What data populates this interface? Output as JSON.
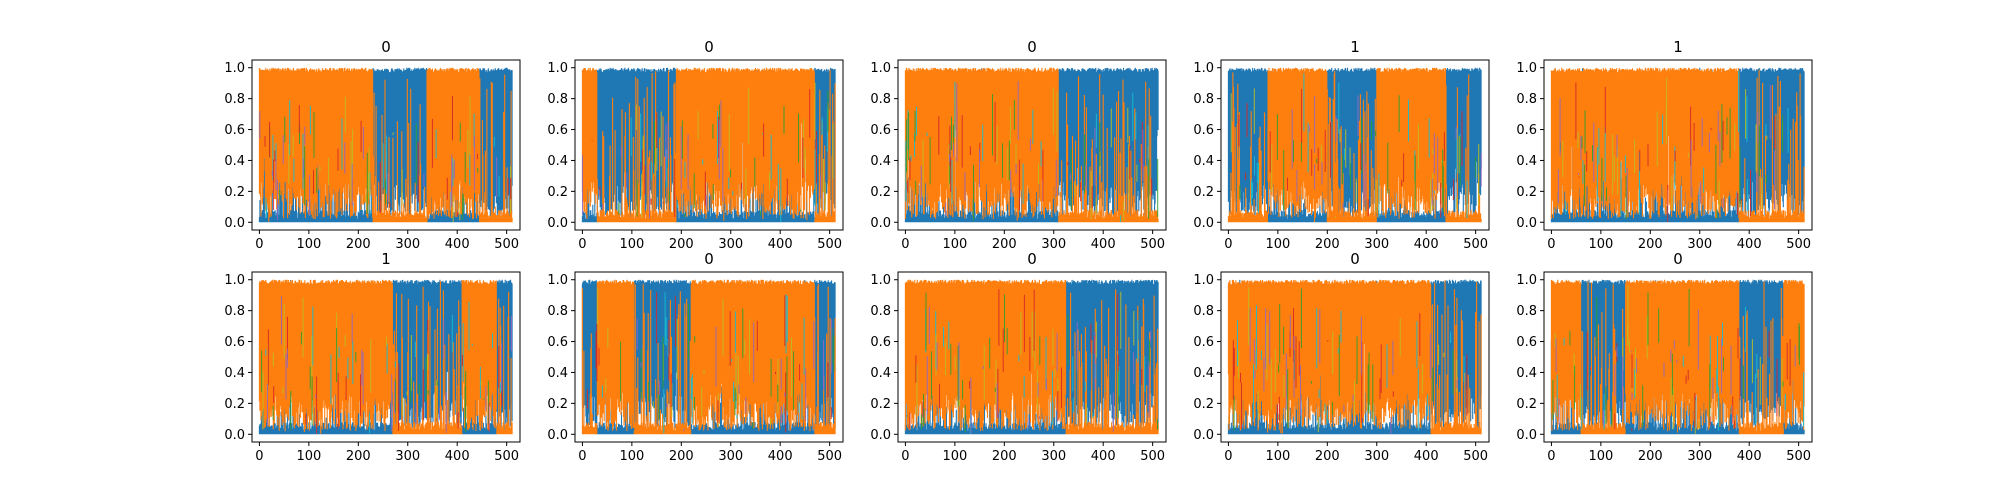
{
  "figure": {
    "background": "#ffffff",
    "grid": "2x5"
  },
  "chart_data": [
    {
      "type": "line",
      "title": "0",
      "xlim": [
        -15,
        527
      ],
      "ylim": [
        -0.05,
        1.05
      ],
      "xticks": [
        0,
        100,
        200,
        300,
        400,
        500
      ],
      "yticks": [
        0.0,
        0.2,
        0.4,
        0.6,
        0.8,
        1.0
      ],
      "series": [
        {
          "color": "#ff7f0e",
          "segments": [
            [
              0,
              230,
              "high"
            ],
            [
              230,
              340,
              "low"
            ],
            [
              340,
              445,
              "high"
            ],
            [
              445,
              512,
              "low"
            ]
          ]
        },
        {
          "color": "#1f77b4",
          "segments": [
            [
              0,
              230,
              "low"
            ],
            [
              230,
              340,
              "high"
            ],
            [
              340,
              445,
              "low"
            ],
            [
              445,
              512,
              "high"
            ]
          ]
        }
      ]
    },
    {
      "type": "line",
      "title": "0",
      "xlim": [
        -15,
        527
      ],
      "ylim": [
        -0.05,
        1.05
      ],
      "xticks": [
        0,
        100,
        200,
        300,
        400,
        500
      ],
      "yticks": [
        0.0,
        0.2,
        0.4,
        0.6,
        0.8,
        1.0
      ],
      "series": [
        {
          "color": "#ff7f0e",
          "segments": [
            [
              0,
              30,
              "high"
            ],
            [
              30,
              190,
              "low"
            ],
            [
              190,
              470,
              "high"
            ],
            [
              470,
              512,
              "low"
            ]
          ]
        },
        {
          "color": "#1f77b4",
          "segments": [
            [
              0,
              30,
              "low"
            ],
            [
              30,
              190,
              "high"
            ],
            [
              190,
              470,
              "low"
            ],
            [
              470,
              512,
              "high"
            ]
          ]
        }
      ]
    },
    {
      "type": "line",
      "title": "0",
      "xlim": [
        -15,
        527
      ],
      "ylim": [
        -0.05,
        1.05
      ],
      "xticks": [
        0,
        100,
        200,
        300,
        400,
        500
      ],
      "yticks": [
        0.0,
        0.2,
        0.4,
        0.6,
        0.8,
        1.0
      ],
      "series": [
        {
          "color": "#ff7f0e",
          "segments": [
            [
              0,
              310,
              "high"
            ],
            [
              310,
              512,
              "low"
            ]
          ]
        },
        {
          "color": "#1f77b4",
          "segments": [
            [
              0,
              310,
              "low"
            ],
            [
              310,
              512,
              "high"
            ]
          ]
        }
      ]
    },
    {
      "type": "line",
      "title": "1",
      "xlim": [
        -15,
        527
      ],
      "ylim": [
        -0.05,
        1.05
      ],
      "xticks": [
        0,
        100,
        200,
        300,
        400,
        500
      ],
      "yticks": [
        0.0,
        0.2,
        0.4,
        0.6,
        0.8,
        1.0
      ],
      "series": [
        {
          "color": "#ff7f0e",
          "segments": [
            [
              0,
              80,
              "low"
            ],
            [
              80,
              200,
              "high"
            ],
            [
              200,
              300,
              "low"
            ],
            [
              300,
              440,
              "high"
            ],
            [
              440,
              512,
              "low"
            ]
          ]
        },
        {
          "color": "#1f77b4",
          "segments": [
            [
              0,
              80,
              "high"
            ],
            [
              80,
              200,
              "low"
            ],
            [
              200,
              300,
              "high"
            ],
            [
              300,
              440,
              "low"
            ],
            [
              440,
              512,
              "high"
            ]
          ]
        }
      ]
    },
    {
      "type": "line",
      "title": "1",
      "xlim": [
        -15,
        527
      ],
      "ylim": [
        -0.05,
        1.05
      ],
      "xticks": [
        0,
        100,
        200,
        300,
        400,
        500
      ],
      "yticks": [
        0.0,
        0.2,
        0.4,
        0.6,
        0.8,
        1.0
      ],
      "series": [
        {
          "color": "#ff7f0e",
          "segments": [
            [
              0,
              380,
              "high"
            ],
            [
              380,
              512,
              "low"
            ]
          ]
        },
        {
          "color": "#1f77b4",
          "segments": [
            [
              0,
              380,
              "low"
            ],
            [
              380,
              512,
              "high"
            ]
          ]
        }
      ]
    },
    {
      "type": "line",
      "title": "1",
      "xlim": [
        -15,
        527
      ],
      "ylim": [
        -0.05,
        1.05
      ],
      "xticks": [
        0,
        100,
        200,
        300,
        400,
        500
      ],
      "yticks": [
        0.0,
        0.2,
        0.4,
        0.6,
        0.8,
        1.0
      ],
      "series": [
        {
          "color": "#ff7f0e",
          "segments": [
            [
              0,
              270,
              "high"
            ],
            [
              270,
              410,
              "low"
            ],
            [
              410,
              480,
              "high"
            ],
            [
              480,
              512,
              "low"
            ]
          ]
        },
        {
          "color": "#1f77b4",
          "segments": [
            [
              0,
              270,
              "low"
            ],
            [
              270,
              410,
              "high"
            ],
            [
              410,
              480,
              "low"
            ],
            [
              480,
              512,
              "high"
            ]
          ]
        }
      ]
    },
    {
      "type": "line",
      "title": "0",
      "xlim": [
        -15,
        527
      ],
      "ylim": [
        -0.05,
        1.05
      ],
      "xticks": [
        0,
        100,
        200,
        300,
        400,
        500
      ],
      "yticks": [
        0.0,
        0.2,
        0.4,
        0.6,
        0.8,
        1.0
      ],
      "series": [
        {
          "color": "#ff7f0e",
          "segments": [
            [
              0,
              30,
              "low"
            ],
            [
              30,
              105,
              "high"
            ],
            [
              105,
              220,
              "low"
            ],
            [
              220,
              470,
              "high"
            ],
            [
              470,
              512,
              "low"
            ]
          ]
        },
        {
          "color": "#1f77b4",
          "segments": [
            [
              0,
              30,
              "high"
            ],
            [
              30,
              105,
              "low"
            ],
            [
              105,
              220,
              "high"
            ],
            [
              220,
              470,
              "low"
            ],
            [
              470,
              512,
              "high"
            ]
          ]
        }
      ]
    },
    {
      "type": "line",
      "title": "0",
      "xlim": [
        -15,
        527
      ],
      "ylim": [
        -0.05,
        1.05
      ],
      "xticks": [
        0,
        100,
        200,
        300,
        400,
        500
      ],
      "yticks": [
        0.0,
        0.2,
        0.4,
        0.6,
        0.8,
        1.0
      ],
      "series": [
        {
          "color": "#ff7f0e",
          "segments": [
            [
              0,
              325,
              "high"
            ],
            [
              325,
              512,
              "low"
            ]
          ]
        },
        {
          "color": "#1f77b4",
          "segments": [
            [
              0,
              325,
              "low"
            ],
            [
              325,
              512,
              "high"
            ]
          ]
        }
      ]
    },
    {
      "type": "line",
      "title": "0",
      "xlim": [
        -15,
        527
      ],
      "ylim": [
        -0.05,
        1.05
      ],
      "xticks": [
        0,
        100,
        200,
        300,
        400,
        500
      ],
      "yticks": [
        0.0,
        0.2,
        0.4,
        0.6,
        0.8,
        1.0
      ],
      "series": [
        {
          "color": "#ff7f0e",
          "segments": [
            [
              0,
              240,
              "high"
            ],
            [
              240,
              410,
              "high"
            ],
            [
              410,
              512,
              "low"
            ]
          ]
        },
        {
          "color": "#1f77b4",
          "segments": [
            [
              0,
              240,
              "low"
            ],
            [
              240,
              410,
              "low"
            ],
            [
              410,
              512,
              "high"
            ]
          ]
        }
      ]
    },
    {
      "type": "line",
      "title": "0",
      "xlim": [
        -15,
        527
      ],
      "ylim": [
        -0.05,
        1.05
      ],
      "xticks": [
        0,
        100,
        200,
        300,
        400,
        500
      ],
      "yticks": [
        0.0,
        0.2,
        0.4,
        0.6,
        0.8,
        1.0
      ],
      "series": [
        {
          "color": "#ff7f0e",
          "segments": [
            [
              0,
              60,
              "high"
            ],
            [
              60,
              150,
              "low"
            ],
            [
              150,
              380,
              "high"
            ],
            [
              380,
              470,
              "low"
            ],
            [
              470,
              512,
              "high"
            ]
          ]
        },
        {
          "color": "#1f77b4",
          "segments": [
            [
              0,
              60,
              "low"
            ],
            [
              60,
              150,
              "high"
            ],
            [
              150,
              380,
              "low"
            ],
            [
              380,
              470,
              "high"
            ],
            [
              470,
              512,
              "low"
            ]
          ]
        }
      ]
    }
  ],
  "noise_colors": [
    "#17becf",
    "#bcbd22",
    "#2ca02c",
    "#d62728",
    "#9467bd"
  ]
}
